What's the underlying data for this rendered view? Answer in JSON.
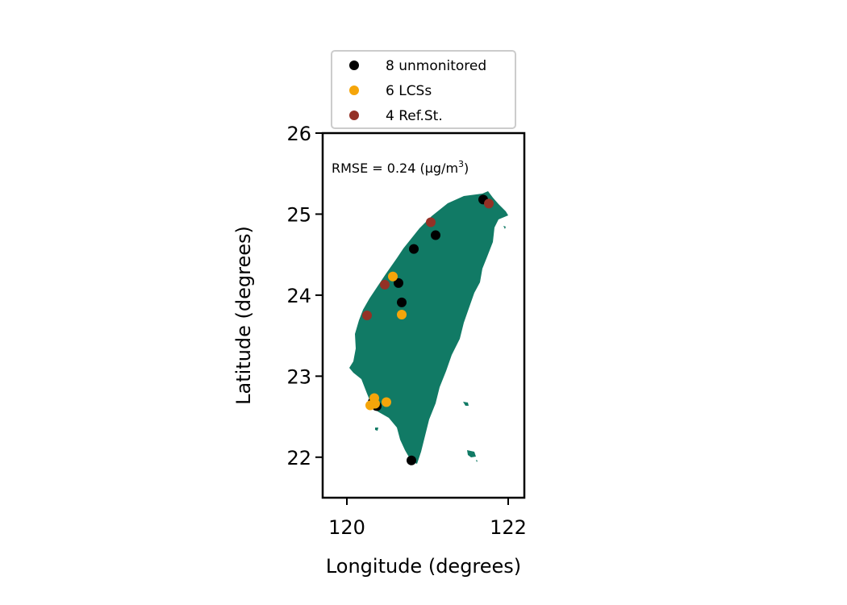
{
  "chart_data": {
    "type": "scatter",
    "xlabel": "Longitude (degrees)",
    "ylabel": "Latitude (degrees)",
    "xlim": [
      119.7,
      122.2
    ],
    "ylim": [
      21.5,
      26.0
    ],
    "xticks": [
      120,
      122
    ],
    "yticks": [
      22,
      23,
      24,
      25,
      26
    ],
    "xtick_labels": [
      "120",
      "122"
    ],
    "ytick_labels": [
      "22",
      "23",
      "24",
      "25",
      "26"
    ],
    "grid": false,
    "legend_placement": "top-center-above",
    "annotation": {
      "prefix": "RMSE = 0.24 (µg/m",
      "superscript": "3",
      "suffix": ")"
    },
    "land_color": "#117a65",
    "series": [
      {
        "name": "8 unmonitored",
        "color": "#000000",
        "points": [
          {
            "x": 121.69,
            "y": 25.18
          },
          {
            "x": 121.1,
            "y": 24.74
          },
          {
            "x": 120.83,
            "y": 24.57
          },
          {
            "x": 120.64,
            "y": 24.15
          },
          {
            "x": 120.68,
            "y": 23.91
          },
          {
            "x": 120.37,
            "y": 22.63
          },
          {
            "x": 120.8,
            "y": 21.96
          },
          {
            "x": 120.32,
            "y": 22.68
          }
        ]
      },
      {
        "name": "6 LCSs",
        "color": "#f5a50a",
        "points": [
          {
            "x": 120.57,
            "y": 24.23
          },
          {
            "x": 120.68,
            "y": 23.76
          },
          {
            "x": 120.34,
            "y": 22.73
          },
          {
            "x": 120.49,
            "y": 22.68
          },
          {
            "x": 120.29,
            "y": 22.64
          },
          {
            "x": 120.35,
            "y": 22.66
          }
        ]
      },
      {
        "name": "4 Ref.St.",
        "color": "#943126",
        "points": [
          {
            "x": 121.76,
            "y": 25.13
          },
          {
            "x": 121.04,
            "y": 24.9
          },
          {
            "x": 120.47,
            "y": 24.13
          },
          {
            "x": 120.25,
            "y": 23.75
          }
        ]
      }
    ]
  }
}
